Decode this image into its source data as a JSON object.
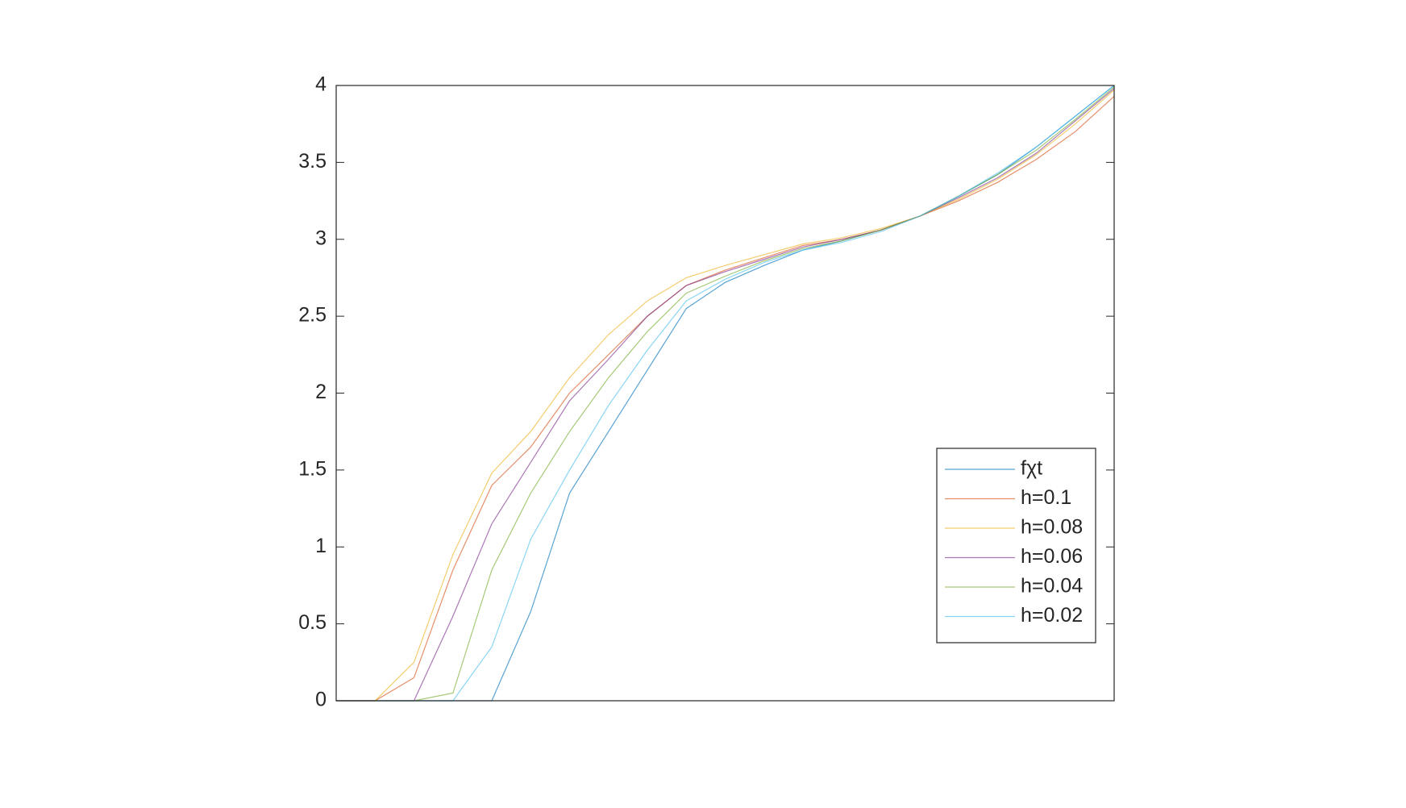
{
  "chart_data": {
    "type": "line",
    "x": [
      0,
      0.05,
      0.1,
      0.15,
      0.2,
      0.25,
      0.3,
      0.35,
      0.4,
      0.45,
      0.5,
      0.55,
      0.6,
      0.65,
      0.7,
      0.75,
      0.8,
      0.85,
      0.9,
      0.95,
      1
    ],
    "xlim": [
      0,
      1
    ],
    "ylim": [
      0,
      4
    ],
    "yticks": [
      0,
      0.5,
      1,
      1.5,
      2,
      2.5,
      3,
      3.5,
      4
    ],
    "legend": "lower right",
    "series": [
      {
        "name": "fχt",
        "color": "#0072BD",
        "values": [
          0,
          0,
          0,
          0,
          0,
          0.58,
          1.35,
          1.75,
          2.15,
          2.55,
          2.72,
          2.83,
          2.93,
          2.99,
          3.06,
          3.15,
          3.28,
          3.42,
          3.6,
          3.8,
          4.0
        ]
      },
      {
        "name": "h=0.1",
        "color": "#D95319",
        "values": [
          0,
          0,
          0.15,
          0.85,
          1.4,
          1.65,
          2.0,
          2.25,
          2.5,
          2.7,
          2.8,
          2.88,
          2.96,
          3.0,
          3.06,
          3.15,
          3.25,
          3.37,
          3.52,
          3.7,
          3.93
        ]
      },
      {
        "name": "h=0.08",
        "color": "#EDB120",
        "values": [
          0,
          0,
          0.25,
          0.95,
          1.48,
          1.75,
          2.1,
          2.38,
          2.6,
          2.75,
          2.83,
          2.9,
          2.97,
          3.01,
          3.07,
          3.15,
          3.26,
          3.39,
          3.55,
          3.75,
          3.97
        ]
      },
      {
        "name": "h=0.06",
        "color": "#7E2F8E",
        "values": [
          0,
          0,
          0,
          0.55,
          1.15,
          1.55,
          1.95,
          2.22,
          2.5,
          2.7,
          2.79,
          2.87,
          2.95,
          3.0,
          3.06,
          3.15,
          3.27,
          3.4,
          3.56,
          3.77,
          3.98
        ]
      },
      {
        "name": "h=0.04",
        "color": "#77AC30",
        "values": [
          0,
          0,
          0,
          0.05,
          0.85,
          1.35,
          1.75,
          2.1,
          2.4,
          2.65,
          2.76,
          2.86,
          2.94,
          2.99,
          3.06,
          3.15,
          3.28,
          3.42,
          3.58,
          3.78,
          3.99
        ]
      },
      {
        "name": "h=0.02",
        "color": "#4DBEEE",
        "values": [
          0,
          0,
          0,
          0,
          0.35,
          1.05,
          1.5,
          1.92,
          2.28,
          2.6,
          2.74,
          2.85,
          2.93,
          2.98,
          3.05,
          3.15,
          3.28,
          3.43,
          3.6,
          3.8,
          4.0
        ]
      }
    ]
  }
}
